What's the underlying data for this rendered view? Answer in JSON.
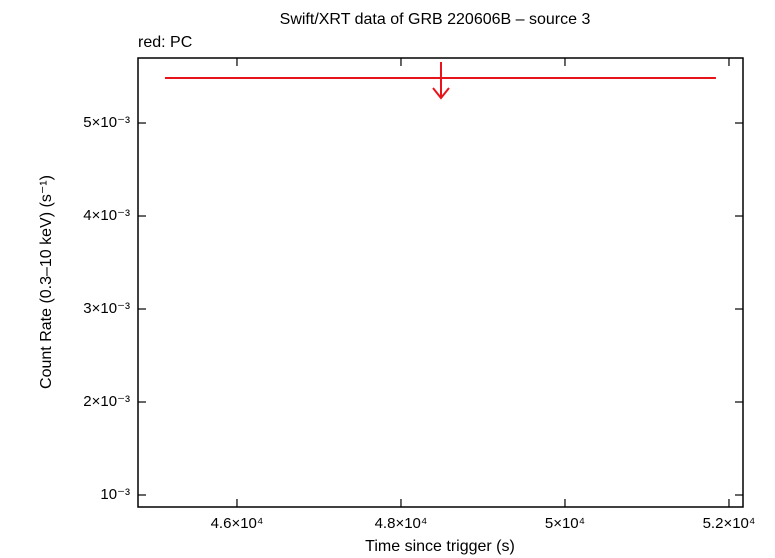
{
  "chart_data": {
    "type": "scatter",
    "title": "Swift/XRT data of GRB 220606B – source 3",
    "subtitle": "red: PC",
    "x_label": "Time since trigger (s)",
    "y_label": "Count Rate (0.3–10 keV) (s⁻¹)",
    "xlim": [
      44793,
      52171
    ],
    "ylim": [
      0.000871,
      0.005699
    ],
    "xticks": [
      {
        "value": 46000,
        "label": "4.6×10⁴"
      },
      {
        "value": 48000,
        "label": "4.8×10⁴"
      },
      {
        "value": 50000,
        "label": "5×10⁴"
      },
      {
        "value": 52000,
        "label": "5.2×10⁴"
      }
    ],
    "yticks": [
      {
        "value": 0.001,
        "label": "10⁻³"
      },
      {
        "value": 0.002,
        "label": "2×10⁻³"
      },
      {
        "value": 0.003,
        "label": "3×10⁻³"
      },
      {
        "value": 0.004,
        "label": "4×10⁻³"
      },
      {
        "value": 0.005,
        "label": "5×10⁻³"
      }
    ],
    "series": [
      {
        "color": "#e8141b",
        "x": [
          48488
        ],
        "x_low": [
          45122
        ],
        "x_high": [
          51841
        ],
        "values": [
          0.005484
        ],
        "upper_limit": true
      }
    ]
  }
}
